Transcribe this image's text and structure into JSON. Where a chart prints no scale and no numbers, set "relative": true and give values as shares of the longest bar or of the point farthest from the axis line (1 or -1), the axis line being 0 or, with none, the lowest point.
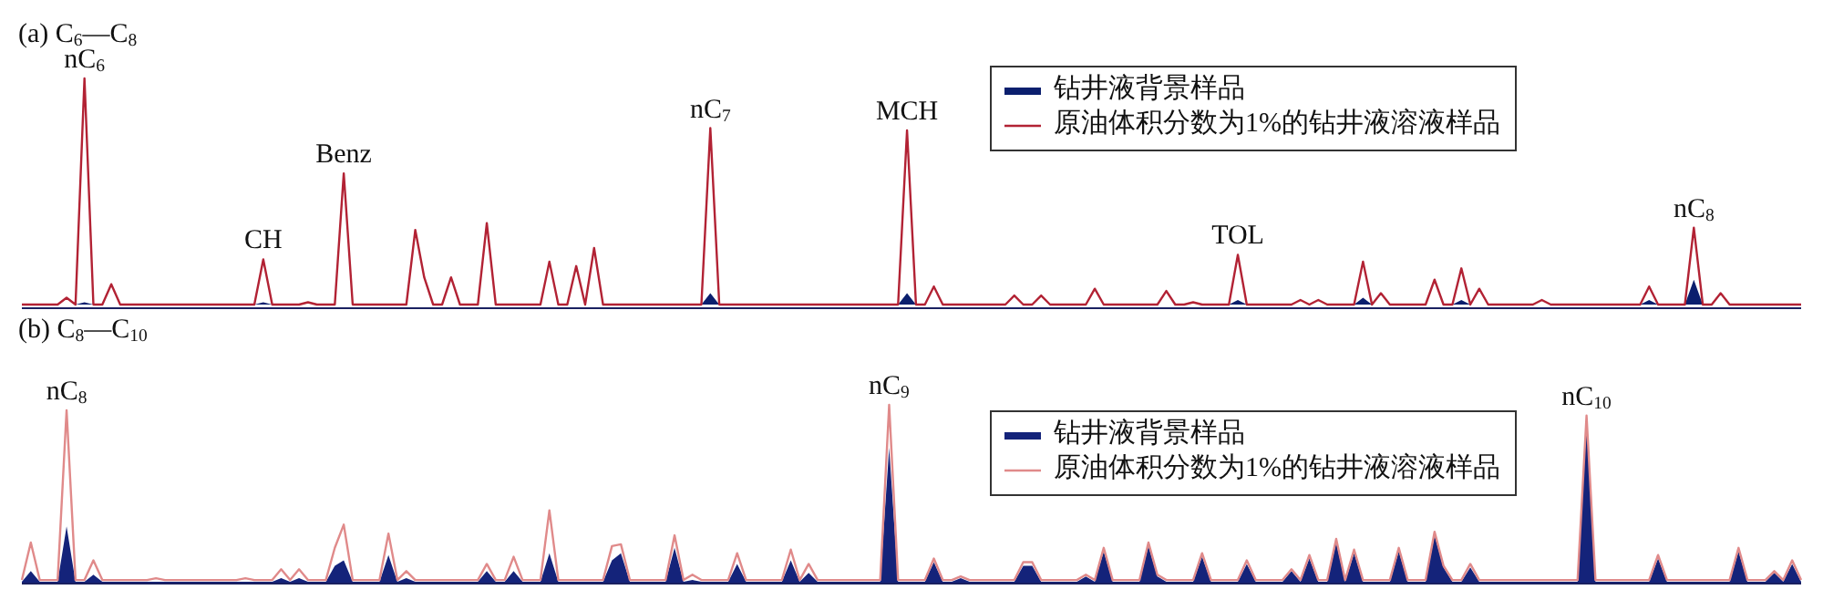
{
  "chart_data": [
    {
      "type": "line",
      "title": "(a) C$_{6}$—C$_{8}$",
      "relative": true,
      "legend": "top right",
      "tick_labels": false,
      "categories": [
        null,
        null,
        null,
        null,
        null,
        null,
        null,
        null,
        null,
        null,
        null,
        null,
        null,
        null,
        null,
        null,
        null,
        null,
        null,
        null,
        null,
        null,
        null,
        null,
        null,
        null,
        null,
        null,
        null,
        null,
        null,
        null,
        null,
        null,
        null,
        null,
        null,
        null,
        null,
        null,
        null,
        null,
        null,
        null,
        null,
        null,
        null,
        null,
        null,
        null,
        null,
        null,
        null,
        null,
        null,
        null,
        null,
        null,
        null,
        null,
        null,
        null,
        null,
        null,
        null,
        null,
        null,
        null,
        null,
        null,
        null,
        null,
        null,
        null,
        null,
        null,
        null,
        null,
        null,
        null,
        null,
        null,
        null,
        null,
        null,
        null,
        null,
        null,
        null,
        null,
        null,
        null,
        null,
        null,
        null,
        null,
        null,
        null,
        null,
        null,
        null,
        null,
        null,
        null,
        null,
        null,
        null,
        null,
        null,
        null,
        null,
        null,
        null,
        null,
        null,
        null,
        null,
        null,
        null,
        null,
        null,
        null,
        null,
        null,
        null,
        null,
        null,
        null,
        null,
        null,
        null,
        null,
        null,
        null,
        null,
        null,
        null,
        null,
        null,
        null,
        null,
        null,
        null,
        null,
        null,
        null,
        null,
        null,
        null,
        null,
        null,
        null,
        null,
        null,
        null,
        null,
        null,
        null,
        null,
        null,
        null,
        null,
        null,
        null,
        null,
        null,
        null,
        null,
        null,
        null,
        null,
        null,
        null,
        null,
        null,
        null,
        null,
        null,
        null,
        null,
        null,
        null,
        null,
        null,
        null,
        null,
        null,
        null,
        null,
        null,
        null,
        null,
        null,
        null,
        null,
        null,
        null,
        null,
        null,
        null
      ],
      "series": [
        {
          "name": "钻井液背景样品",
          "type": "area",
          "color": "#0b1f6e",
          "values": [
            0,
            0,
            0,
            0,
            0,
            0,
            0,
            0.01,
            0,
            0,
            0,
            0,
            0,
            0,
            0,
            0,
            0,
            0,
            0,
            0,
            0,
            0,
            0,
            0,
            0,
            0,
            0,
            0.01,
            0,
            0,
            0,
            0,
            0,
            0,
            0,
            0,
            0,
            0,
            0,
            0,
            0,
            0,
            0,
            0,
            0,
            0,
            0,
            0,
            0,
            0,
            0,
            0,
            0,
            0,
            0,
            0,
            0,
            0,
            0,
            0,
            0,
            0,
            0,
            0,
            0,
            0,
            0,
            0,
            0,
            0,
            0,
            0,
            0,
            0,
            0,
            0,
            0,
            0.05,
            0,
            0,
            0,
            0,
            0,
            0,
            0,
            0,
            0,
            0,
            0,
            0,
            0,
            0,
            0,
            0,
            0,
            0,
            0,
            0,
            0,
            0.05,
            0,
            0,
            0,
            0,
            0,
            0,
            0,
            0,
            0,
            0,
            0,
            0,
            0,
            0,
            0,
            0,
            0,
            0,
            0,
            0,
            0,
            0,
            0,
            0,
            0,
            0,
            0,
            0,
            0,
            0,
            0,
            0,
            0,
            0,
            0,
            0,
            0.02,
            0,
            0,
            0,
            0,
            0,
            0,
            0,
            0,
            0,
            0,
            0,
            0,
            0,
            0.03,
            0,
            0,
            0,
            0,
            0,
            0,
            0,
            0,
            0,
            0,
            0.02,
            0,
            0,
            0,
            0,
            0,
            0,
            0,
            0,
            0,
            0,
            0,
            0,
            0,
            0,
            0,
            0,
            0,
            0,
            0,
            0,
            0.02,
            0,
            0,
            0,
            0,
            0.11,
            0,
            0,
            0,
            0,
            0,
            0,
            0,
            0,
            0,
            0,
            0,
            0
          ]
        },
        {
          "name": "原油体积分数为1%的钻井液溶液样品",
          "type": "line",
          "color": "#b22234",
          "values": [
            0,
            0,
            0,
            0,
            0,
            0.03,
            0,
            1,
            0,
            0,
            0.09,
            0,
            0,
            0,
            0,
            0,
            0,
            0,
            0,
            0,
            0,
            0,
            0,
            0,
            0,
            0,
            0,
            0.2,
            0,
            0,
            0,
            0,
            0.01,
            0,
            0,
            0,
            0.58,
            0,
            0,
            0,
            0,
            0,
            0,
            0,
            0.33,
            0.12,
            0,
            0,
            0.12,
            0,
            0,
            0,
            0.36,
            0,
            0,
            0,
            0,
            0,
            0,
            0.19,
            0,
            0,
            0.17,
            0,
            0.25,
            0,
            0,
            0,
            0,
            0,
            0,
            0,
            0,
            0,
            0,
            0,
            0,
            0.78,
            0,
            0,
            0,
            0,
            0,
            0,
            0,
            0,
            0,
            0,
            0,
            0,
            0,
            0,
            0,
            0,
            0,
            0,
            0,
            0,
            0,
            0.77,
            0,
            0,
            0.08,
            0,
            0,
            0,
            0,
            0,
            0,
            0,
            0,
            0.04,
            0,
            0,
            0.04,
            0,
            0,
            0,
            0,
            0,
            0.07,
            0,
            0,
            0,
            0,
            0,
            0,
            0,
            0.06,
            0,
            0,
            0.01,
            0,
            0,
            0,
            0,
            0.22,
            0,
            0,
            0,
            0,
            0,
            0,
            0.02,
            0,
            0.02,
            0,
            0,
            0,
            0,
            0.19,
            0,
            0.05,
            0,
            0,
            0,
            0,
            0,
            0.11,
            0,
            0,
            0.16,
            0,
            0.07,
            0,
            0,
            0,
            0,
            0,
            0,
            0.02,
            0,
            0,
            0,
            0,
            0,
            0,
            0,
            0,
            0,
            0,
            0,
            0.08,
            0,
            0,
            0,
            0,
            0.34,
            0,
            0,
            0.05,
            0,
            0,
            0,
            0,
            0,
            0,
            0,
            0,
            0
          ]
        }
      ],
      "annotations": [
        {
          "text": "nC$_{6}$",
          "y": 1
        },
        {
          "text": "CH",
          "y": 0.2
        },
        {
          "text": "Benz",
          "y": 0.58
        },
        {
          "text": "nC$_{7}$",
          "y": 0.78
        },
        {
          "text": "MCH",
          "y": 0.77
        },
        {
          "text": "TOL",
          "y": 0.22
        },
        {
          "text": "nC$_{8}$",
          "y": 0.34
        }
      ]
    },
    {
      "type": "line",
      "title": "(b) C$_{8}$—C$_{10}$",
      "relative": true,
      "legend": "top right",
      "tick_labels": false,
      "categories": [
        null,
        null,
        null,
        null,
        null,
        null,
        null,
        null,
        null,
        null,
        null,
        null,
        null,
        null,
        null,
        null,
        null,
        null,
        null,
        null,
        null,
        null,
        null,
        null,
        null,
        null,
        null,
        null,
        null,
        null,
        null,
        null,
        null,
        null,
        null,
        null,
        null,
        null,
        null,
        null,
        null,
        null,
        null,
        null,
        null,
        null,
        null,
        null,
        null,
        null,
        null,
        null,
        null,
        null,
        null,
        null,
        null,
        null,
        null,
        null,
        null,
        null,
        null,
        null,
        null,
        null,
        null,
        null,
        null,
        null,
        null,
        null,
        null,
        null,
        null,
        null,
        null,
        null,
        null,
        null,
        null,
        null,
        null,
        null,
        null,
        null,
        null,
        null,
        null,
        null,
        null,
        null,
        null,
        null,
        null,
        null,
        null,
        null,
        null,
        null,
        null,
        null,
        null,
        null,
        null,
        null,
        null,
        null,
        null,
        null,
        null,
        null,
        null,
        null,
        null,
        null,
        null,
        null,
        null,
        null,
        null,
        null,
        null,
        null,
        null,
        null,
        null,
        null,
        null,
        null,
        null,
        null,
        null,
        null,
        null,
        null,
        null,
        null,
        null,
        null,
        null,
        null,
        null,
        null,
        null,
        null,
        null,
        null,
        null,
        null,
        null,
        null,
        null,
        null,
        null,
        null,
        null,
        null,
        null,
        null,
        null,
        null,
        null,
        null,
        null,
        null,
        null,
        null,
        null,
        null,
        null,
        null,
        null,
        null,
        null,
        null,
        null,
        null,
        null,
        null,
        null,
        null,
        null,
        null,
        null,
        null,
        null,
        null,
        null,
        null,
        null,
        null,
        null,
        null,
        null,
        null,
        null,
        null,
        null,
        null
      ],
      "series": [
        {
          "name": "钻井液背景样品",
          "type": "area",
          "color": "#14237a",
          "values": [
            0.01,
            0.07,
            0.01,
            0.01,
            0.01,
            0.32,
            0.01,
            0.01,
            0.05,
            0.01,
            0.01,
            0.01,
            0.01,
            0.01,
            0.01,
            0.01,
            0.01,
            0.01,
            0.01,
            0.01,
            0.01,
            0.01,
            0.01,
            0.01,
            0.01,
            0.01,
            0.01,
            0.01,
            0.01,
            0.03,
            0.01,
            0.03,
            0.01,
            0.01,
            0.01,
            0.1,
            0.13,
            0.01,
            0.01,
            0.01,
            0.01,
            0.16,
            0.01,
            0.03,
            0.01,
            0.01,
            0.01,
            0.01,
            0.01,
            0.01,
            0.01,
            0.01,
            0.07,
            0.01,
            0.01,
            0.07,
            0.01,
            0.01,
            0.01,
            0.17,
            0.01,
            0.01,
            0.01,
            0.01,
            0.01,
            0.01,
            0.13,
            0.17,
            0.01,
            0.01,
            0.01,
            0.01,
            0.01,
            0.2,
            0.01,
            0.02,
            0.01,
            0.01,
            0.01,
            0.01,
            0.11,
            0.01,
            0.01,
            0.01,
            0.01,
            0.01,
            0.13,
            0.01,
            0.06,
            0.01,
            0.01,
            0.01,
            0.01,
            0.01,
            0.01,
            0.01,
            0.01,
            0.76,
            0.01,
            0.01,
            0.01,
            0.01,
            0.12,
            0.01,
            0.01,
            0.03,
            0.01,
            0.01,
            0.01,
            0.01,
            0.01,
            0.01,
            0.1,
            0.1,
            0.01,
            0.01,
            0.01,
            0.01,
            0.01,
            0.04,
            0.01,
            0.18,
            0.01,
            0.01,
            0.01,
            0.01,
            0.21,
            0.04,
            0.01,
            0.01,
            0.01,
            0.01,
            0.15,
            0.01,
            0.01,
            0.01,
            0.01,
            0.11,
            0.01,
            0.01,
            0.01,
            0.01,
            0.07,
            0.01,
            0.14,
            0.01,
            0.01,
            0.23,
            0.01,
            0.17,
            0.01,
            0.01,
            0.01,
            0.01,
            0.18,
            0.01,
            0.01,
            0.01,
            0.27,
            0.09,
            0.01,
            0.01,
            0.09,
            0.01,
            0.01,
            0.01,
            0.01,
            0.01,
            0.01,
            0.01,
            0.01,
            0.01,
            0.01,
            0.01,
            0.01,
            0.9,
            0.01,
            0.01,
            0.01,
            0.01,
            0.01,
            0.01,
            0.01,
            0.14,
            0.01,
            0.01,
            0.01,
            0.01,
            0.01,
            0.01,
            0.01,
            0.01,
            0.18,
            0.01,
            0.01,
            0.01,
            0.06,
            0.01,
            0.11,
            0.01
          ]
        },
        {
          "name": "原油体积分数为1%的钻井液溶液样品",
          "type": "line",
          "color": "#e08a8a",
          "values": [
            0.02,
            0.23,
            0.02,
            0.02,
            0.02,
            0.97,
            0.02,
            0.02,
            0.13,
            0.02,
            0.02,
            0.02,
            0.02,
            0.02,
            0.02,
            0.03,
            0.02,
            0.02,
            0.02,
            0.02,
            0.02,
            0.02,
            0.02,
            0.02,
            0.02,
            0.03,
            0.02,
            0.02,
            0.02,
            0.08,
            0.02,
            0.08,
            0.02,
            0.02,
            0.02,
            0.2,
            0.33,
            0.02,
            0.02,
            0.02,
            0.02,
            0.28,
            0.02,
            0.07,
            0.02,
            0.02,
            0.02,
            0.02,
            0.02,
            0.02,
            0.02,
            0.02,
            0.11,
            0.02,
            0.02,
            0.15,
            0.02,
            0.02,
            0.02,
            0.41,
            0.02,
            0.02,
            0.02,
            0.02,
            0.02,
            0.02,
            0.21,
            0.22,
            0.02,
            0.02,
            0.02,
            0.02,
            0.02,
            0.27,
            0.02,
            0.05,
            0.02,
            0.02,
            0.02,
            0.02,
            0.17,
            0.02,
            0.02,
            0.02,
            0.02,
            0.02,
            0.19,
            0.02,
            0.11,
            0.02,
            0.02,
            0.02,
            0.02,
            0.02,
            0.02,
            0.02,
            0.02,
            1,
            0.02,
            0.02,
            0.02,
            0.02,
            0.14,
            0.02,
            0.02,
            0.04,
            0.02,
            0.02,
            0.02,
            0.02,
            0.02,
            0.02,
            0.12,
            0.12,
            0.02,
            0.02,
            0.02,
            0.02,
            0.02,
            0.05,
            0.02,
            0.2,
            0.02,
            0.02,
            0.02,
            0.02,
            0.23,
            0.05,
            0.02,
            0.02,
            0.02,
            0.02,
            0.17,
            0.02,
            0.02,
            0.02,
            0.02,
            0.13,
            0.02,
            0.02,
            0.02,
            0.02,
            0.08,
            0.02,
            0.16,
            0.02,
            0.02,
            0.25,
            0.02,
            0.19,
            0.02,
            0.02,
            0.02,
            0.02,
            0.2,
            0.02,
            0.02,
            0.02,
            0.29,
            0.1,
            0.02,
            0.02,
            0.11,
            0.02,
            0.02,
            0.02,
            0.02,
            0.02,
            0.02,
            0.02,
            0.02,
            0.02,
            0.02,
            0.02,
            0.02,
            0.94,
            0.02,
            0.02,
            0.02,
            0.02,
            0.02,
            0.02,
            0.02,
            0.16,
            0.02,
            0.02,
            0.02,
            0.02,
            0.02,
            0.02,
            0.02,
            0.02,
            0.2,
            0.02,
            0.02,
            0.02,
            0.07,
            0.02,
            0.13,
            0.02
          ]
        }
      ],
      "annotations": [
        {
          "text": "nC$_{8}$",
          "y": 0.97
        },
        {
          "text": "nC$_{9}$",
          "y": 1
        },
        {
          "text": "nC$_{10}$",
          "y": 0.94
        }
      ]
    }
  ]
}
